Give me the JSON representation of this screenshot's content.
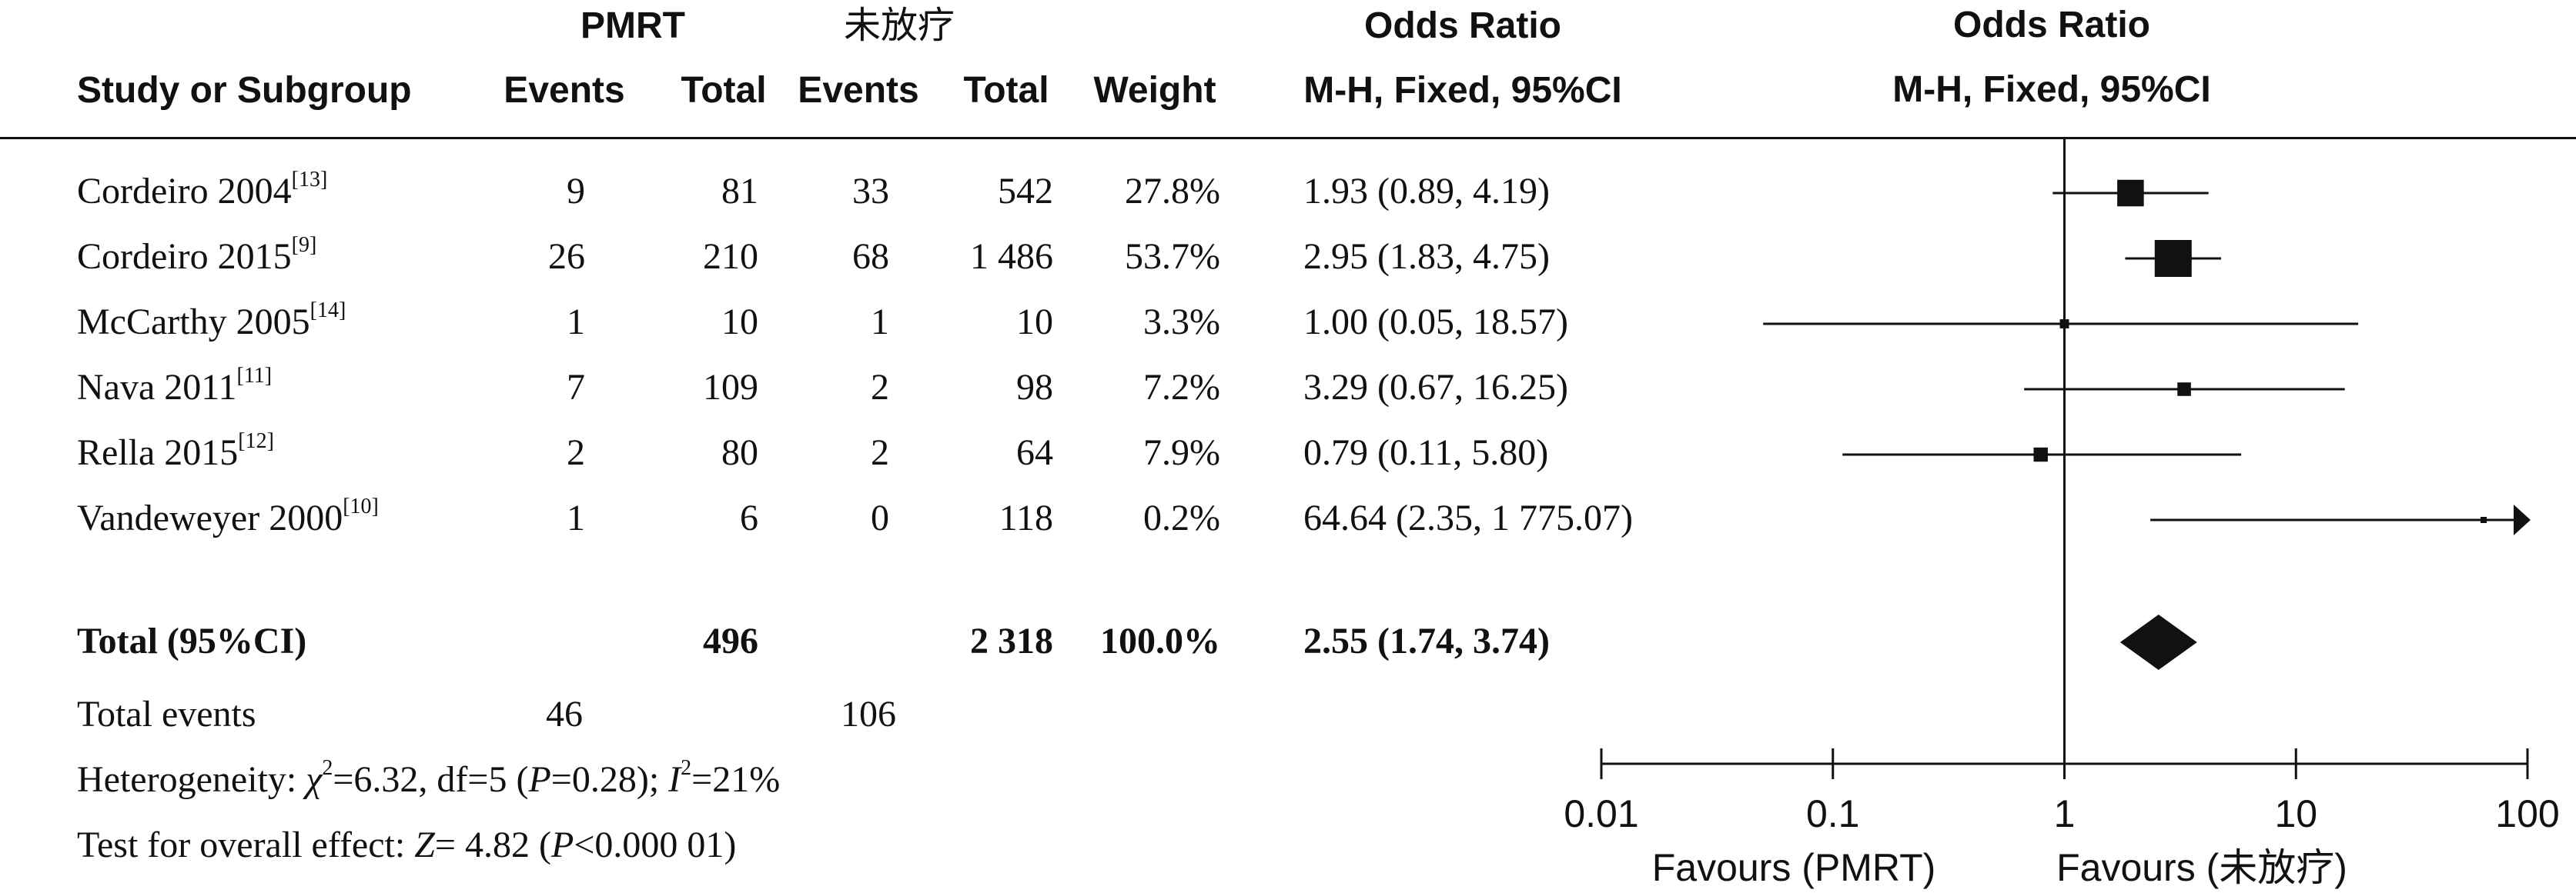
{
  "headers": {
    "group1": "PMRT",
    "group2": "未放疗",
    "study": "Study or Subgroup",
    "events1": "Events",
    "total1": "Total",
    "events2": "Events",
    "total2": "Total",
    "weight": "Weight",
    "or_title": "Odds Ratio",
    "or_method": "M-H, Fixed, 95%CI"
  },
  "studies": [
    {
      "name": "Cordeiro 2004",
      "ref": "[13]",
      "events1": "9",
      "total1": "81",
      "events2": "33",
      "total2": "542",
      "weight": "27.8%",
      "ci_text": "1.93 (0.89, 4.19)"
    },
    {
      "name": "Cordeiro 2015",
      "ref": "[9]",
      "events1": "26",
      "total1": "210",
      "events2": "68",
      "total2": "1 486",
      "weight": "53.7%",
      "ci_text": "2.95 (1.83, 4.75)"
    },
    {
      "name": "McCarthy 2005",
      "ref": "[14]",
      "events1": "1",
      "total1": "10",
      "events2": "1",
      "total2": "10",
      "weight": "3.3%",
      "ci_text": "1.00 (0.05, 18.57)"
    },
    {
      "name": "Nava 2011",
      "ref": "[11]",
      "events1": "7",
      "total1": "109",
      "events2": "2",
      "total2": "98",
      "weight": "7.2%",
      "ci_text": "3.29 (0.67, 16.25)"
    },
    {
      "name": "Rella 2015",
      "ref": "[12]",
      "events1": "2",
      "total1": "80",
      "events2": "2",
      "total2": "64",
      "weight": "7.9%",
      "ci_text": "0.79 (0.11, 5.80)"
    },
    {
      "name": "Vandeweyer 2000",
      "ref": "[10]",
      "events1": "1",
      "total1": "6",
      "events2": "0",
      "total2": "118",
      "weight": "0.2%",
      "ci_text": "64.64 (2.35, 1 775.07)"
    }
  ],
  "total": {
    "label": "Total (95%CI)",
    "total1": "496",
    "total2": "2 318",
    "weight": "100.0%",
    "ci_text": "2.55 (1.74, 3.74)"
  },
  "total_events": {
    "label": "Total events",
    "events1": "46",
    "events2": "106"
  },
  "heterogeneity": {
    "prefix": "Heterogeneity: ",
    "chi": "χ",
    "chi_sup": "2",
    "rest1": "=6.32, df=5 (",
    "p": "P",
    "rest2": "=0.28); ",
    "i": "I",
    "i_sup": "2",
    "rest3": "=21%"
  },
  "overall": {
    "prefix": "Test for overall effect: ",
    "z": "Z",
    "rest1": "= 4.82 (",
    "p": "P",
    "rest2": "<0.000 01)"
  },
  "chart_data": {
    "type": "forest",
    "title": "Odds Ratio",
    "subtitle": "M-H, Fixed, 95%CI",
    "x_scale": "log",
    "xlim": [
      0.01,
      100
    ],
    "ticks": [
      0.01,
      0.1,
      1,
      10,
      100
    ],
    "tick_labels": [
      "0.01",
      "0.1",
      "1",
      "10",
      "100"
    ],
    "reference_line": 1,
    "favours_left": "Favours (PMRT)",
    "favours_right": "Favours (未放疗)",
    "points": [
      {
        "study": "Cordeiro 2004",
        "or": 1.93,
        "lo": 0.89,
        "hi": 4.19,
        "weight": 27.8
      },
      {
        "study": "Cordeiro 2015",
        "or": 2.95,
        "lo": 1.83,
        "hi": 4.75,
        "weight": 53.7
      },
      {
        "study": "McCarthy 2005",
        "or": 1.0,
        "lo": 0.05,
        "hi": 18.57,
        "weight": 3.3
      },
      {
        "study": "Nava 2011",
        "or": 3.29,
        "lo": 0.67,
        "hi": 16.25,
        "weight": 7.2
      },
      {
        "study": "Rella 2015",
        "or": 0.79,
        "lo": 0.11,
        "hi": 5.8,
        "weight": 7.9
      },
      {
        "study": "Vandeweyer 2000",
        "or": 64.64,
        "lo": 2.35,
        "hi": 1775.07,
        "weight": 0.2
      }
    ],
    "pooled": {
      "or": 2.55,
      "lo": 1.74,
      "hi": 3.74
    }
  }
}
